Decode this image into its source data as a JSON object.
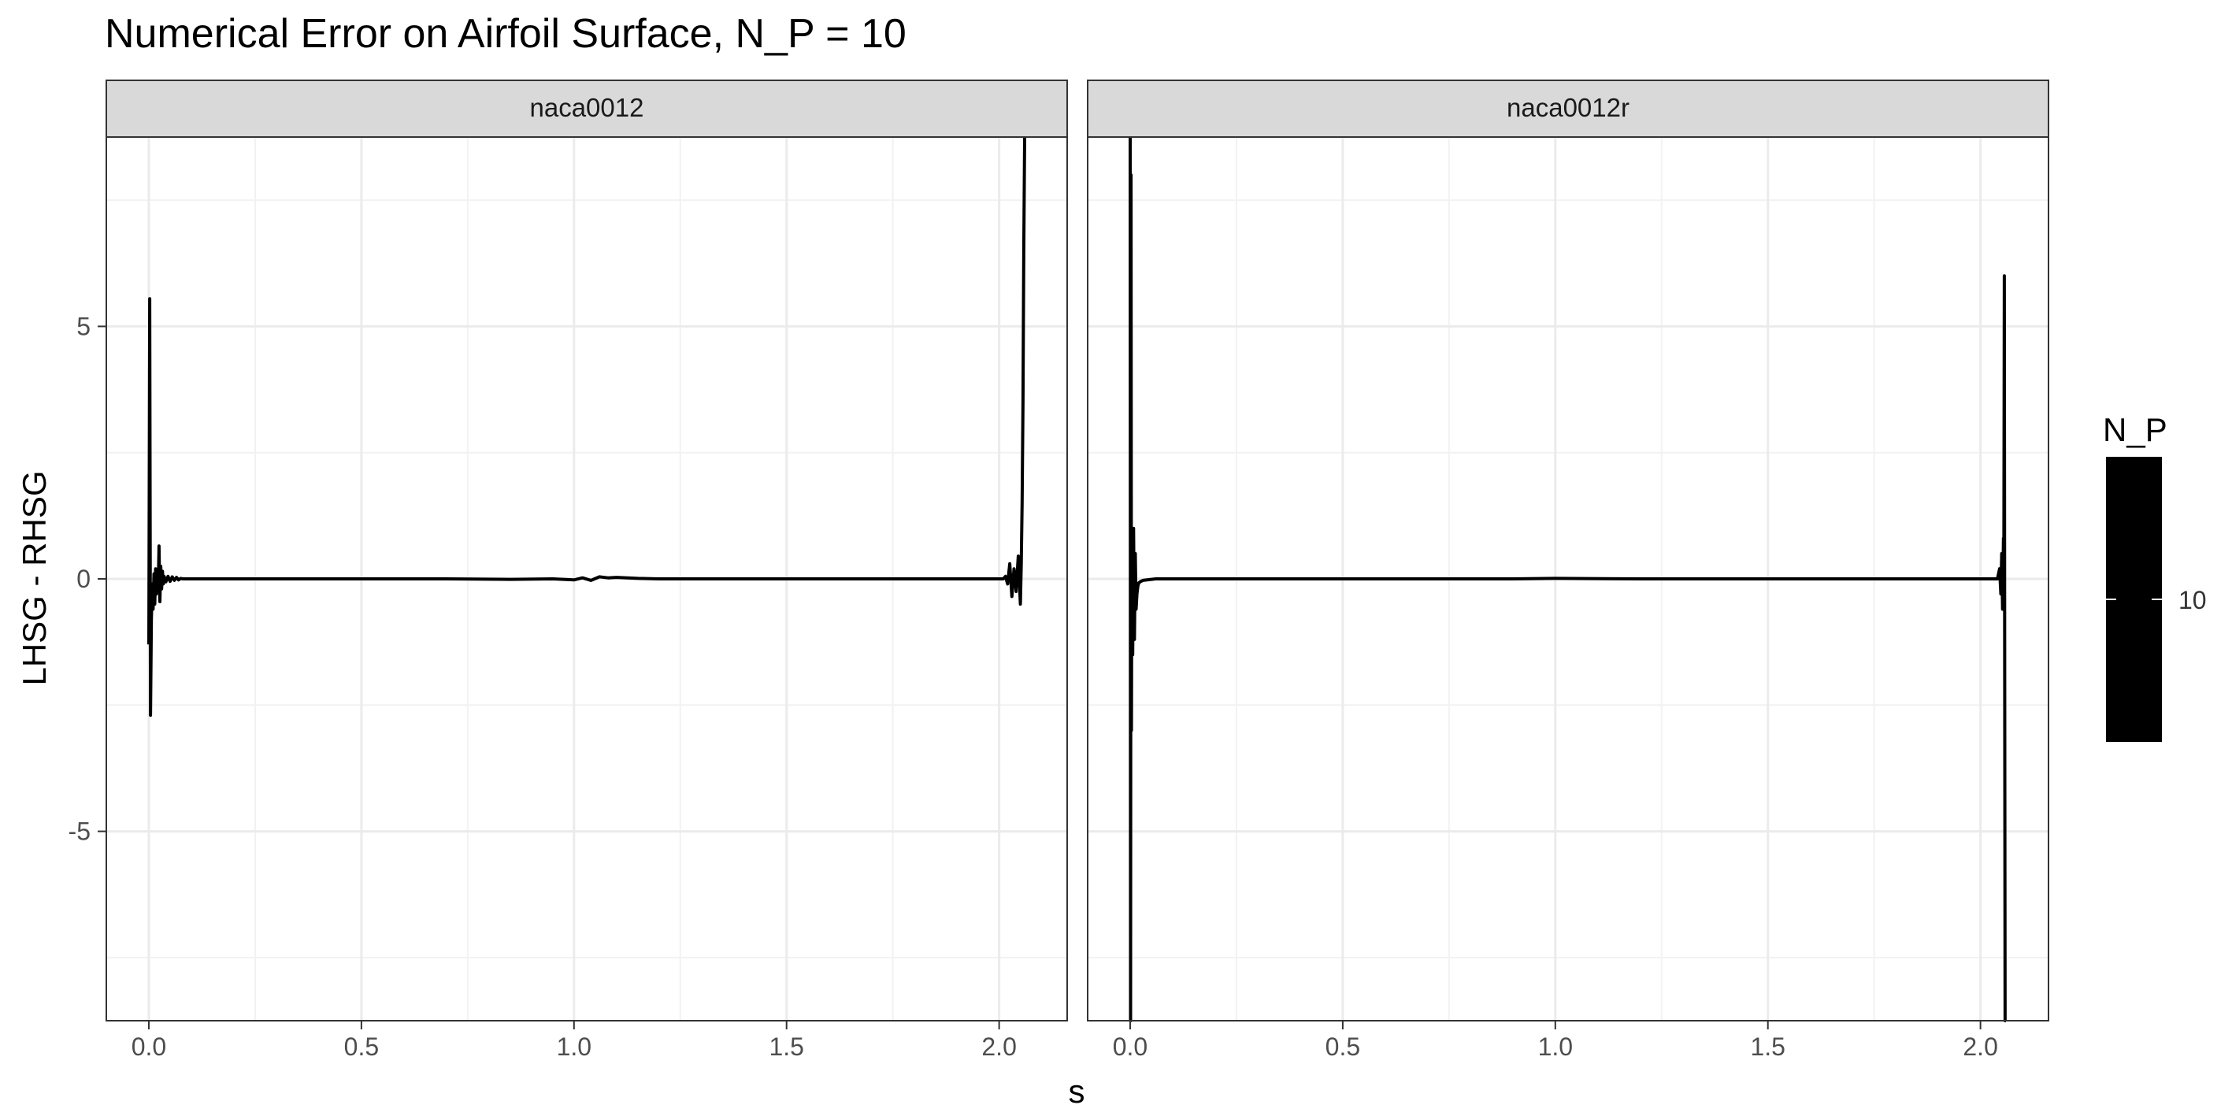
{
  "chart_data": {
    "type": "line",
    "title": "Numerical Error on Airfoil Surface, N_P = 10",
    "xlabel": "s",
    "ylabel": "LHSG - RHSG",
    "xlim": [
      -0.1,
      2.16
    ],
    "ylim": [
      -8.75,
      8.75
    ],
    "x_ticks": [
      0.0,
      0.5,
      1.0,
      1.5,
      2.0
    ],
    "x_tick_labels": [
      "0.0",
      "0.5",
      "1.0",
      "1.5",
      "2.0"
    ],
    "y_ticks": [
      -5,
      0,
      5
    ],
    "y_tick_labels": [
      "-5",
      "0",
      "5"
    ],
    "grid": true,
    "line_color": "#000000",
    "legend": {
      "title": "N_P",
      "label": "10",
      "placement": "right"
    },
    "panels": [
      {
        "strip_label": "naca0012",
        "series": [
          {
            "x": [
              0.0,
              0.002,
              0.004,
              0.006,
              0.008,
              0.01,
              0.012,
              0.014,
              0.016,
              0.018,
              0.02,
              0.022,
              0.024,
              0.026,
              0.028,
              0.03,
              0.032,
              0.034,
              0.036,
              0.04,
              0.045,
              0.05,
              0.055,
              0.06,
              0.065,
              0.07,
              0.075,
              0.08,
              0.1,
              0.3,
              0.5,
              0.7,
              0.85,
              0.95,
              1.0,
              1.02,
              1.04,
              1.06,
              1.08,
              1.1,
              1.15,
              1.2,
              1.4,
              1.6,
              1.8,
              2.0,
              2.01,
              2.015,
              2.02,
              2.025,
              2.03,
              2.035,
              2.04,
              2.045,
              2.05,
              2.052,
              2.054,
              2.056,
              2.058,
              2.06
            ],
            "y": [
              -1.3,
              5.55,
              -2.7,
              -0.8,
              -0.1,
              -0.6,
              0.1,
              -0.5,
              0.2,
              -0.3,
              0.1,
              -0.2,
              0.65,
              -0.45,
              0.25,
              -0.2,
              0.15,
              -0.1,
              0.05,
              -0.06,
              0.05,
              -0.05,
              0.04,
              -0.03,
              0.03,
              -0.02,
              0.01,
              0.0,
              0.0,
              0.0,
              0.0,
              0.0,
              -0.01,
              0.0,
              -0.02,
              0.02,
              -0.03,
              0.04,
              0.02,
              0.03,
              0.01,
              0.0,
              0.0,
              0.0,
              0.0,
              0.0,
              0.0,
              0.05,
              -0.1,
              0.3,
              -0.35,
              0.2,
              -0.25,
              0.45,
              -0.5,
              0.3,
              1.5,
              3.5,
              6.5,
              8.75
            ]
          }
        ]
      },
      {
        "strip_label": "naca0012r",
        "series": [
          {
            "x": [
              0.0,
              0.001,
              0.002,
              0.003,
              0.004,
              0.006,
              0.008,
              0.01,
              0.012,
              0.014,
              0.016,
              0.018,
              0.02,
              0.025,
              0.03,
              0.04,
              0.05,
              0.06,
              0.08,
              0.1,
              0.3,
              0.5,
              0.7,
              0.9,
              1.0,
              1.2,
              1.5,
              1.8,
              2.0,
              2.04,
              2.045,
              2.048,
              2.05,
              2.052,
              2.054,
              2.055,
              2.056,
              2.057,
              2.058,
              2.06
            ],
            "y": [
              8.75,
              -8.75,
              8.0,
              -3.0,
              0.6,
              -1.5,
              1.0,
              -1.2,
              0.5,
              -0.6,
              -0.3,
              -0.15,
              -0.08,
              -0.05,
              -0.03,
              -0.02,
              -0.01,
              0.0,
              0.0,
              0.0,
              0.0,
              0.0,
              0.0,
              0.0,
              0.01,
              0.0,
              0.0,
              0.0,
              0.0,
              0.0,
              0.2,
              -0.3,
              0.5,
              -0.6,
              0.8,
              0.2,
              6.0,
              -2.0,
              -8.75,
              -8.75
            ]
          }
        ]
      }
    ]
  }
}
